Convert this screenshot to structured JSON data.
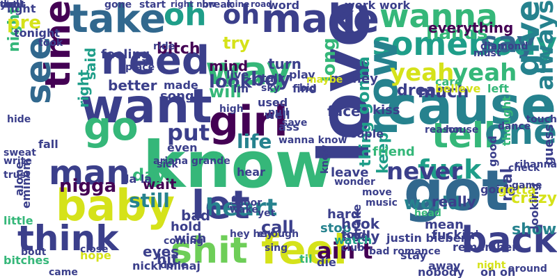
{
  "palette": {
    "dark_purple": "#440154",
    "indigo": "#3b3f8b",
    "blue": "#31688e",
    "teal": "#26828e",
    "green_teal": "#1f9e89",
    "green": "#35b779",
    "lime": "#6ece58",
    "yellow": "#d5e21a"
  },
  "words": [
    {
      "text": "know",
      "color": "#35b779"
    },
    {
      "text": "love",
      "color": "#3b3f8b"
    },
    {
      "text": "cause",
      "color": "#26828e"
    },
    {
      "text": "got",
      "color": "#31688e"
    },
    {
      "text": "want",
      "color": "#3b3f8b"
    },
    {
      "text": "need",
      "color": "#3b3f8b"
    },
    {
      "text": "take",
      "color": "#31688e"
    },
    {
      "text": "make",
      "color": "#3b3f8b"
    },
    {
      "text": "oh",
      "color": "#1f9e89"
    },
    {
      "text": "oh",
      "color": "#3b3f8b"
    },
    {
      "text": "way",
      "color": "#35b779"
    },
    {
      "text": "wanna",
      "color": "#35b779"
    },
    {
      "text": "somebody",
      "color": "#1f9e89"
    },
    {
      "text": "say",
      "color": "#31688e"
    },
    {
      "text": "give",
      "color": "#26828e"
    },
    {
      "text": "always",
      "color": "#26828e"
    },
    {
      "text": "time",
      "color": "#440154"
    },
    {
      "text": "see",
      "color": "#31688e"
    },
    {
      "text": "baby",
      "color": "#d5e21a"
    },
    {
      "text": "go",
      "color": "#35b779"
    },
    {
      "text": "girl",
      "color": "#440154"
    },
    {
      "text": "tell",
      "color": "#35b779"
    },
    {
      "text": "one",
      "color": "#26828e"
    },
    {
      "text": "now",
      "color": "#26828e"
    },
    {
      "text": "back",
      "color": "#3b3f8b"
    },
    {
      "text": "feel",
      "color": "#d5e21a"
    },
    {
      "text": "shit",
      "color": "#6ece58"
    },
    {
      "text": "think",
      "color": "#3b3f8b"
    },
    {
      "text": "let",
      "color": "#3b3f8b"
    },
    {
      "text": "man",
      "color": "#3b3f8b"
    },
    {
      "text": "heart",
      "color": "#26828e"
    },
    {
      "text": "fuck",
      "color": "#1f9e89"
    },
    {
      "text": "never",
      "color": "#3b3f8b"
    },
    {
      "text": "yeah",
      "color": "#d5e21a"
    },
    {
      "text": "yeah",
      "color": "#35b779"
    },
    {
      "text": "put",
      "color": "#3b3f8b"
    },
    {
      "text": "still",
      "color": "#26828e"
    },
    {
      "text": "ain't",
      "color": "#440154"
    },
    {
      "text": "life",
      "color": "#26828e"
    },
    {
      "text": "boy",
      "color": "#3b3f8b"
    },
    {
      "text": "look",
      "color": "#3b3f8b"
    },
    {
      "text": "mind",
      "color": "#440154"
    },
    {
      "text": "turn",
      "color": "#3b3f8b"
    },
    {
      "text": "bitch",
      "color": "#440154"
    },
    {
      "text": "feeling",
      "color": "#3b3f8b"
    },
    {
      "text": "said",
      "color": "#1f9e89"
    },
    {
      "text": "right",
      "color": "#1f9e89"
    },
    {
      "text": "night",
      "color": "#35b779"
    },
    {
      "text": "pre",
      "color": "#d5e21a"
    },
    {
      "text": "light",
      "color": "#3b3f8b"
    },
    {
      "text": "tonight",
      "color": "#3b3f8b"
    },
    {
      "text": "hands",
      "color": "#35b779"
    },
    {
      "text": "try",
      "color": "#d5e21a"
    },
    {
      "text": "wait",
      "color": "#440154"
    },
    {
      "text": "day",
      "color": "#35b779"
    },
    {
      "text": "nigga",
      "color": "#440154"
    },
    {
      "text": "call",
      "color": "#3b3f8b"
    },
    {
      "text": "world",
      "color": "#26828e"
    },
    {
      "text": "keep",
      "color": "#1f9e89"
    },
    {
      "text": "gonna",
      "color": "#1f9e89"
    },
    {
      "text": "thing",
      "color": "#1f9e89"
    },
    {
      "text": "show",
      "color": "#26828e"
    },
    {
      "text": "real",
      "color": "#3b3f8b"
    },
    {
      "text": "everything",
      "color": "#440154"
    },
    {
      "text": "body",
      "color": "#3b3f8b"
    },
    {
      "text": "watch",
      "color": "#1f9e89"
    },
    {
      "text": "stop",
      "color": "#26828e"
    },
    {
      "text": "eyes",
      "color": "#3b3f8b"
    },
    {
      "text": "hit",
      "color": "#3b3f8b"
    },
    {
      "text": "la la",
      "color": "#3b3f8b"
    },
    {
      "text": "dream",
      "color": "#3b3f8b"
    },
    {
      "text": "much",
      "color": "#3b3f8b"
    },
    {
      "text": "better",
      "color": "#3b3f8b"
    },
    {
      "text": "will",
      "color": "#35b779"
    },
    {
      "text": "song",
      "color": "#3b3f8b"
    },
    {
      "text": "even",
      "color": "#3b3f8b"
    },
    {
      "text": "long",
      "color": "#35b779"
    },
    {
      "text": "crazy",
      "color": "#d5e21a"
    },
    {
      "text": "hard",
      "color": "#3b3f8b"
    },
    {
      "text": "hook",
      "color": "#3b3f8b"
    },
    {
      "text": "told",
      "color": "#3b3f8b"
    },
    {
      "text": "mean",
      "color": "#3b3f8b"
    },
    {
      "text": "really",
      "color": "#3b3f8b"
    },
    {
      "text": "fall",
      "color": "#3b3f8b"
    },
    {
      "text": "hear",
      "color": "#3b3f8b"
    },
    {
      "text": "leave",
      "color": "#3b3f8b"
    },
    {
      "text": "friend",
      "color": "#35b779"
    },
    {
      "text": "face",
      "color": "#3b3f8b"
    },
    {
      "text": "kiss",
      "color": "#3b3f8b"
    },
    {
      "text": "left",
      "color": "#35b779"
    },
    {
      "text": "care",
      "color": "#35b779"
    },
    {
      "text": "money",
      "color": "#3b3f8b"
    },
    {
      "text": "made",
      "color": "#3b3f8b"
    },
    {
      "text": "bad",
      "color": "#3b3f8b"
    },
    {
      "text": "hold",
      "color": "#3b3f8b"
    },
    {
      "text": "wish",
      "color": "#3b3f8b"
    },
    {
      "text": "alone",
      "color": "#3b3f8b"
    },
    {
      "text": "little",
      "color": "#35b779"
    },
    {
      "text": "eminem",
      "color": "#3b3f8b"
    },
    {
      "text": "bitches",
      "color": "#35b779"
    },
    {
      "text": "play",
      "color": "#3b3f8b"
    },
    {
      "text": "talk",
      "color": "#3b3f8b"
    },
    {
      "text": "live",
      "color": "#3b3f8b"
    },
    {
      "text": "word",
      "color": "#3b3f8b"
    },
    {
      "text": "work work",
      "color": "#3b3f8b"
    },
    {
      "text": "break",
      "color": "#3b3f8b"
    },
    {
      "text": "gone",
      "color": "#3b3f8b"
    },
    {
      "text": "start",
      "color": "#3b3f8b"
    },
    {
      "text": "believe",
      "color": "#d5e21a"
    },
    {
      "text": "going",
      "color": "#3b3f8b"
    },
    {
      "text": "guess",
      "color": "#3b3f8b"
    },
    {
      "text": "looking",
      "color": "#3b3f8b"
    },
    {
      "text": "good",
      "color": "#3b3f8b"
    },
    {
      "text": "thought",
      "color": "#35b779"
    },
    {
      "text": "stay",
      "color": "#3b3f8b"
    },
    {
      "text": "drake",
      "color": "#3b3f8b"
    },
    {
      "text": "fuckin'",
      "color": "#3b3f8b"
    },
    {
      "text": "gotta",
      "color": "#d5e21a"
    },
    {
      "text": "head",
      "color": "#35b779"
    },
    {
      "text": "people",
      "color": "#3b3f8b"
    },
    {
      "text": "ass",
      "color": "#3b3f8b"
    },
    {
      "text": "well",
      "color": "#3b3f8b"
    },
    {
      "text": "used",
      "color": "#3b3f8b"
    },
    {
      "text": "find",
      "color": "#3b3f8b"
    },
    {
      "text": "maybe",
      "color": "#d5e21a"
    },
    {
      "text": "im",
      "color": "#3b3f8b"
    },
    {
      "text": "hope",
      "color": "#d5e21a"
    },
    {
      "text": "nicki minaj",
      "color": "#3b3f8b"
    },
    {
      "text": "done",
      "color": "#3b3f8b"
    },
    {
      "text": "die",
      "color": "#3b3f8b"
    },
    {
      "text": "til",
      "color": "#35b779"
    },
    {
      "text": "away",
      "color": "#3b3f8b"
    },
    {
      "text": "around",
      "color": "#3b3f8b"
    },
    {
      "text": "nobody",
      "color": "#3b3f8b"
    },
    {
      "text": "oh oh",
      "color": "#3b3f8b"
    },
    {
      "text": "night",
      "color": "#d5e21a"
    },
    {
      "text": "came",
      "color": "#3b3f8b"
    },
    {
      "text": "remember",
      "color": "#3b3f8b"
    },
    {
      "text": "justin bieber",
      "color": "#3b3f8b"
    },
    {
      "text": "coming",
      "color": "#3b3f8b"
    },
    {
      "text": "close",
      "color": "#3b3f8b"
    },
    {
      "text": "bout",
      "color": "#3b3f8b"
    },
    {
      "text": "trust",
      "color": "#3b3f8b"
    },
    {
      "text": "write",
      "color": "#3b3f8b"
    },
    {
      "text": "sweat",
      "color": "#3b3f8b"
    },
    {
      "text": "hide",
      "color": "#3b3f8b"
    },
    {
      "text": "game",
      "color": "#3b3f8b"
    },
    {
      "text": "must",
      "color": "#3b3f8b"
    },
    {
      "text": "diamond",
      "color": "#3b3f8b"
    },
    {
      "text": "touch",
      "color": "#3b3f8b"
    },
    {
      "text": "dance",
      "color": "#3b3f8b"
    },
    {
      "text": "check",
      "color": "#3b3f8b"
    },
    {
      "text": "rihanna",
      "color": "#3b3f8b"
    },
    {
      "text": "bad romance",
      "color": "#3b3f8b"
    },
    {
      "text": "club",
      "color": "#3b3f8b"
    },
    {
      "text": "reason",
      "color": "#3b3f8b"
    },
    {
      "text": "house",
      "color": "#3b3f8b"
    },
    {
      "text": "ride",
      "color": "#3b3f8b"
    },
    {
      "text": "pull",
      "color": "#3b3f8b"
    },
    {
      "text": "save",
      "color": "#3b3f8b"
    },
    {
      "text": "big",
      "color": "#3b3f8b"
    },
    {
      "text": "door",
      "color": "#3b3f8b"
    },
    {
      "text": "wake",
      "color": "#3b3f8b"
    },
    {
      "text": "sky",
      "color": "#3b3f8b"
    },
    {
      "text": "high",
      "color": "#3b3f8b"
    },
    {
      "text": "wonder",
      "color": "#3b3f8b"
    },
    {
      "text": "move",
      "color": "#3b3f8b"
    },
    {
      "text": "music",
      "color": "#3b3f8b"
    },
    {
      "text": "yet",
      "color": "#3b3f8b"
    },
    {
      "text": "enough",
      "color": "#3b3f8b"
    },
    {
      "text": "sing",
      "color": "#3b3f8b"
    },
    {
      "text": "sick",
      "color": "#3b3f8b"
    },
    {
      "text": "wanna know",
      "color": "#3b3f8b"
    },
    {
      "text": "lie",
      "color": "#3b3f8b"
    },
    {
      "text": "hey hey",
      "color": "#3b3f8b"
    },
    {
      "text": "knew",
      "color": "#3b3f8b"
    },
    {
      "text": "ariana grande",
      "color": "#3b3f8b"
    },
    {
      "text": "place",
      "color": "#3b3f8b"
    },
    {
      "text": "took",
      "color": "#3b3f8b"
    },
    {
      "text": "right now",
      "color": "#3b3f8b"
    },
    {
      "text": "mine",
      "color": "#3b3f8b"
    },
    {
      "text": "road",
      "color": "#3b3f8b"
    },
    {
      "text": "y'all",
      "color": "#3b3f8b"
    },
    {
      "text": "dont",
      "color": "#3b3f8b"
    },
    {
      "text": "two",
      "color": "#3b3f8b"
    },
    {
      "text": "cut",
      "color": "#3b3f8b"
    }
  ]
}
